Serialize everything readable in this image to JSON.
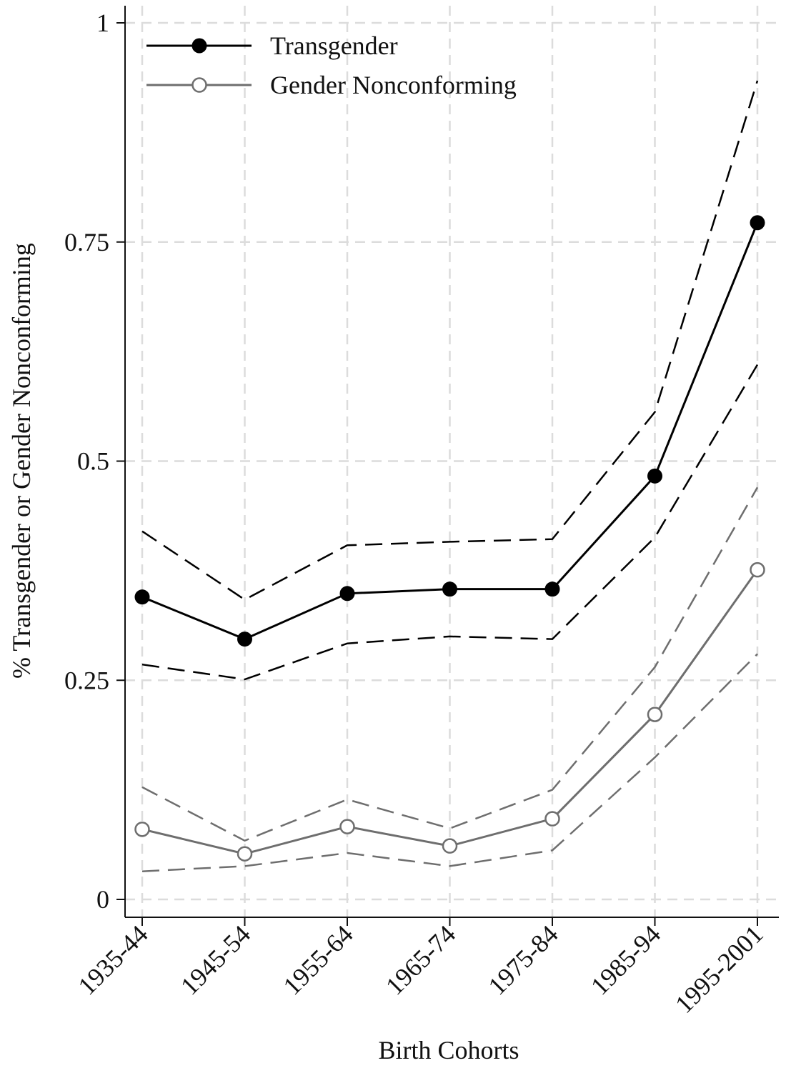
{
  "chart_data": {
    "type": "line",
    "title": "",
    "xlabel": "Birth Cohorts",
    "ylabel": "% Transgender or Gender Nonconforming",
    "categories": [
      "1935-44",
      "1945-54",
      "1955-64",
      "1965-74",
      "1975-84",
      "1985-94",
      "1995-2001"
    ],
    "yticks": [
      0,
      0.25,
      0.5,
      0.75,
      1
    ],
    "ytick_labels": [
      "0",
      "0.25",
      "0.5",
      "0.75",
      "1"
    ],
    "ylim": [
      -0.02,
      1.02
    ],
    "grid": true,
    "legend_position": "top-left",
    "series": [
      {
        "name": "Transgender",
        "color": "#000000",
        "marker": "filled-circle",
        "values": [
          0.345,
          0.297,
          0.349,
          0.354,
          0.354,
          0.483,
          0.772
        ],
        "ci_upper": [
          0.42,
          0.342,
          0.404,
          0.408,
          0.411,
          0.556,
          0.934
        ],
        "ci_lower": [
          0.268,
          0.251,
          0.292,
          0.3,
          0.297,
          0.413,
          0.61
        ]
      },
      {
        "name": "Gender Nonconforming",
        "color": "#6e6e6e",
        "marker": "hollow-circle",
        "values": [
          0.08,
          0.052,
          0.083,
          0.061,
          0.092,
          0.211,
          0.376
        ],
        "ci_upper": [
          0.128,
          0.067,
          0.114,
          0.081,
          0.125,
          0.265,
          0.47
        ],
        "ci_lower": [
          0.032,
          0.038,
          0.053,
          0.038,
          0.056,
          0.162,
          0.28
        ]
      }
    ]
  }
}
